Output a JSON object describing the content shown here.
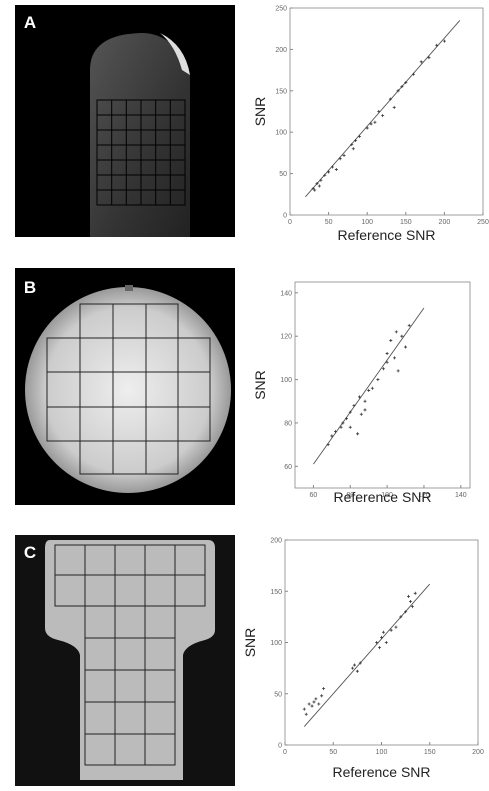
{
  "chart_data": [
    {
      "type": "scatter",
      "panel_label": "A",
      "xlabel": "Reference SNR",
      "ylabel": "SNR",
      "xlim": [
        0,
        250
      ],
      "ylim": [
        0,
        250
      ],
      "xticks": [
        0,
        50,
        100,
        150,
        200,
        250
      ],
      "yticks": [
        0,
        50,
        100,
        150,
        200,
        250
      ],
      "color": "#333333",
      "series": [
        {
          "x": [
            30,
            32,
            35,
            38,
            40,
            45,
            50,
            55,
            60,
            65,
            70,
            80,
            82,
            85,
            90,
            100,
            105,
            110,
            115,
            120,
            130,
            135,
            140,
            145,
            150,
            160,
            170,
            180,
            190,
            200
          ],
          "values": [
            32,
            30,
            38,
            35,
            42,
            48,
            52,
            58,
            55,
            68,
            72,
            85,
            80,
            90,
            95,
            105,
            110,
            112,
            125,
            120,
            140,
            130,
            150,
            155,
            160,
            170,
            185,
            190,
            205,
            210
          ]
        }
      ],
      "fit_x": [
        20,
        220
      ],
      "fit_y": [
        22,
        235
      ]
    },
    {
      "type": "scatter",
      "panel_label": "B",
      "xlabel": "Reference SNR",
      "ylabel": "SNR",
      "xlim": [
        50,
        145
      ],
      "ylim": [
        50,
        145
      ],
      "xticks": [
        60,
        80,
        100,
        120,
        140
      ],
      "yticks": [
        60,
        80,
        100,
        120,
        140
      ],
      "color": "#333333",
      "series": [
        {
          "x": [
            68,
            70,
            72,
            75,
            76,
            78,
            80,
            80,
            82,
            84,
            85,
            86,
            88,
            88,
            90,
            92,
            95,
            98,
            100,
            100,
            102,
            104,
            105,
            106,
            108,
            110,
            112
          ],
          "values": [
            70,
            74,
            76,
            78,
            80,
            82,
            85,
            78,
            88,
            75,
            92,
            84,
            90,
            86,
            95,
            96,
            100,
            105,
            108,
            112,
            118,
            110,
            122,
            104,
            120,
            115,
            125
          ]
        }
      ],
      "fit_x": [
        60,
        120
      ],
      "fit_y": [
        61,
        133
      ]
    },
    {
      "type": "scatter",
      "panel_label": "C",
      "xlabel": "Reference SNR",
      "ylabel": "SNR",
      "xlim": [
        0,
        200
      ],
      "ylim": [
        0,
        200
      ],
      "xticks": [
        0,
        50,
        100,
        150,
        200
      ],
      "yticks": [
        0,
        50,
        100,
        150,
        200
      ],
      "color": "#333333",
      "series": [
        {
          "x": [
            20,
            22,
            25,
            28,
            30,
            32,
            35,
            38,
            40,
            70,
            72,
            75,
            78,
            95,
            98,
            100,
            102,
            105,
            110,
            115,
            120,
            125,
            128,
            130,
            132,
            135
          ],
          "values": [
            35,
            30,
            40,
            38,
            42,
            45,
            40,
            48,
            55,
            75,
            78,
            72,
            80,
            100,
            95,
            105,
            110,
            100,
            112,
            115,
            125,
            130,
            145,
            140,
            135,
            148
          ]
        }
      ],
      "fit_x": [
        20,
        150
      ],
      "fit_y": [
        18,
        157
      ]
    }
  ]
}
